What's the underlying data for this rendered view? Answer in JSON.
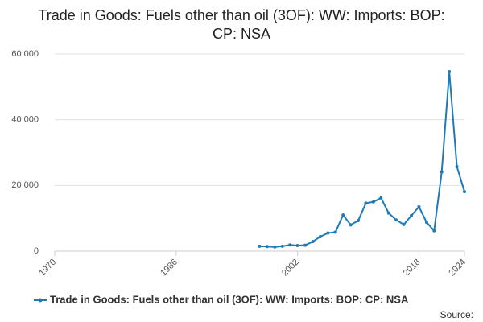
{
  "chart_data": {
    "type": "line",
    "title": "Trade in Goods: Fuels other than oil (3OF): WW: Imports: BOP: CP: NSA",
    "source": "Source:",
    "x": [
      1997,
      1998,
      1999,
      2000,
      2001,
      2002,
      2003,
      2004,
      2005,
      2006,
      2007,
      2008,
      2009,
      2010,
      2011,
      2012,
      2013,
      2014,
      2015,
      2016,
      2017,
      2018,
      2019,
      2020,
      2021,
      2022,
      2023,
      2024
    ],
    "series": [
      {
        "name": "Trade in Goods: Fuels other than oil (3OF): WW: Imports: BOP: CP: NSA",
        "color": "#1f7bb6",
        "values": [
          1500,
          1400,
          1300,
          1500,
          1900,
          1700,
          1800,
          2900,
          4400,
          5500,
          5800,
          11000,
          8000,
          9300,
          14600,
          15000,
          16200,
          11600,
          9500,
          8100,
          10800,
          13500,
          8800,
          6200,
          24100,
          54600,
          25700,
          18100
        ]
      }
    ],
    "xlim": [
      1970,
      2024
    ],
    "xticks": [
      1970,
      1986,
      2002,
      2018,
      2024
    ],
    "ylim": [
      0,
      60000
    ],
    "yticks": [
      0,
      {
        "value": 20000,
        "label": "20 000"
      },
      {
        "value": 40000,
        "label": "40 000"
      },
      {
        "value": 60000,
        "label": "60 000"
      }
    ],
    "grid": true
  }
}
